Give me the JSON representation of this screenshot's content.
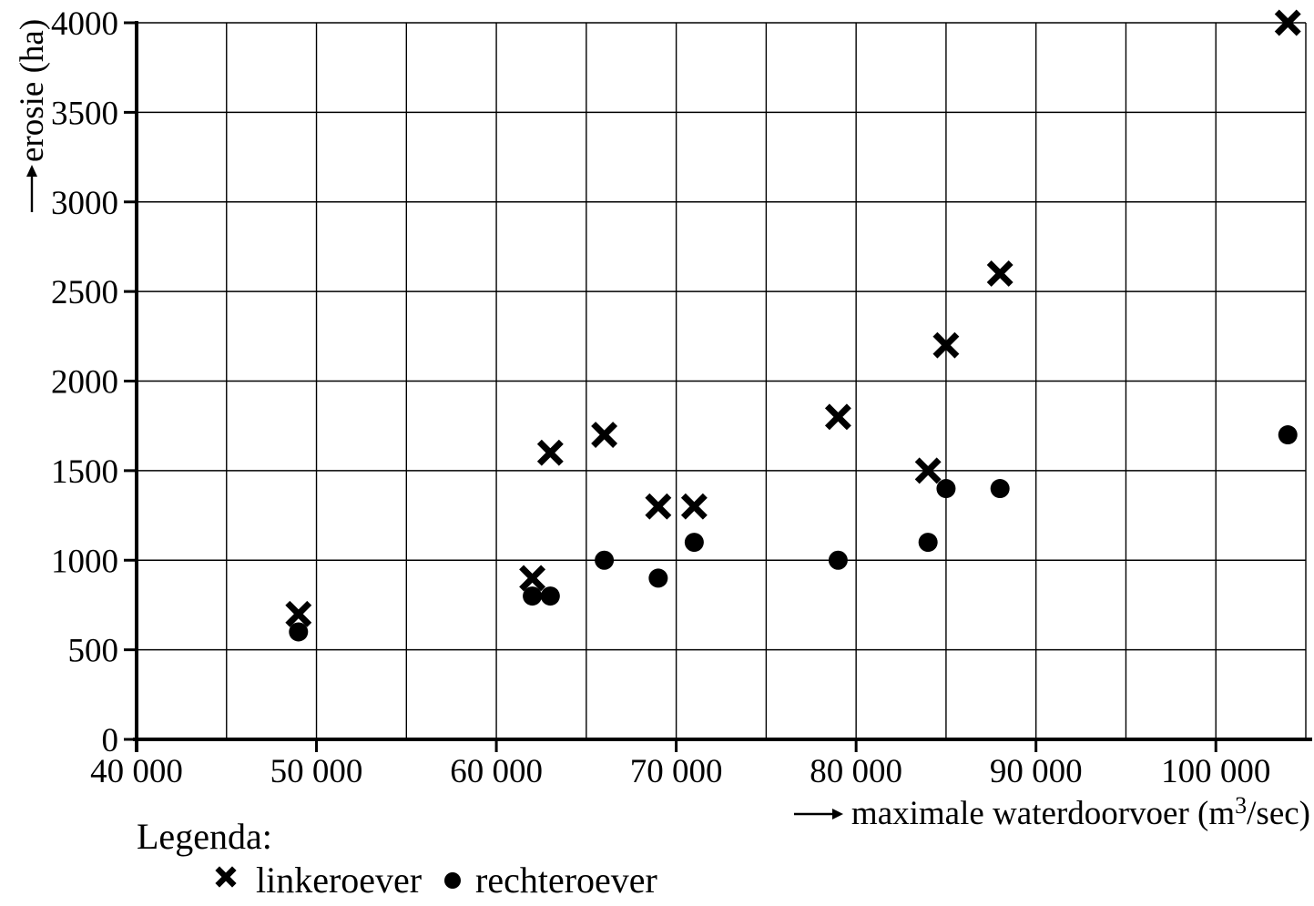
{
  "chart_data": {
    "type": "scatter",
    "title": "",
    "grid": true,
    "x_axis": {
      "label_prefix": "maximale waterdoorvoer (m",
      "label_sup": "3",
      "label_suffix": "/sec)",
      "min": 40000,
      "max": 105000,
      "grid_step": 5000,
      "ticks": [
        {
          "value": 40000,
          "label": "40 000"
        },
        {
          "value": 50000,
          "label": "50 000"
        },
        {
          "value": 60000,
          "label": "60 000"
        },
        {
          "value": 70000,
          "label": "70 000"
        },
        {
          "value": 80000,
          "label": "80 000"
        },
        {
          "value": 90000,
          "label": "90 000"
        },
        {
          "value": 100000,
          "label": "100 000"
        }
      ]
    },
    "y_axis": {
      "label": "erosie (ha)",
      "min": 0,
      "max": 4000,
      "grid_step": 500,
      "ticks": [
        {
          "value": 0,
          "label": "0"
        },
        {
          "value": 500,
          "label": "500"
        },
        {
          "value": 1000,
          "label": "1000"
        },
        {
          "value": 1500,
          "label": "1500"
        },
        {
          "value": 2000,
          "label": "2000"
        },
        {
          "value": 2500,
          "label": "2500"
        },
        {
          "value": 3000,
          "label": "3000"
        },
        {
          "value": 3500,
          "label": "3500"
        },
        {
          "value": 4000,
          "label": "4000"
        }
      ]
    },
    "legend": {
      "title": "Legenda:",
      "position": "bottom-left"
    },
    "series": [
      {
        "name": "linkeroever",
        "marker": "cross",
        "points": [
          [
            49000,
            700
          ],
          [
            62000,
            900
          ],
          [
            63000,
            1600
          ],
          [
            66000,
            1700
          ],
          [
            69000,
            1300
          ],
          [
            71000,
            1300
          ],
          [
            79000,
            1800
          ],
          [
            84000,
            1500
          ],
          [
            85000,
            2200
          ],
          [
            88000,
            2600
          ],
          [
            104000,
            4000
          ]
        ]
      },
      {
        "name": "rechteroever",
        "marker": "dot",
        "points": [
          [
            49000,
            600
          ],
          [
            62000,
            800
          ],
          [
            63000,
            800
          ],
          [
            66000,
            1000
          ],
          [
            69000,
            900
          ],
          [
            71000,
            1100
          ],
          [
            79000,
            1000
          ],
          [
            84000,
            1100
          ],
          [
            85000,
            1400
          ],
          [
            88000,
            1400
          ],
          [
            104000,
            1700
          ]
        ]
      }
    ]
  },
  "colors": {
    "foreground": "#000000",
    "background": "#ffffff"
  }
}
